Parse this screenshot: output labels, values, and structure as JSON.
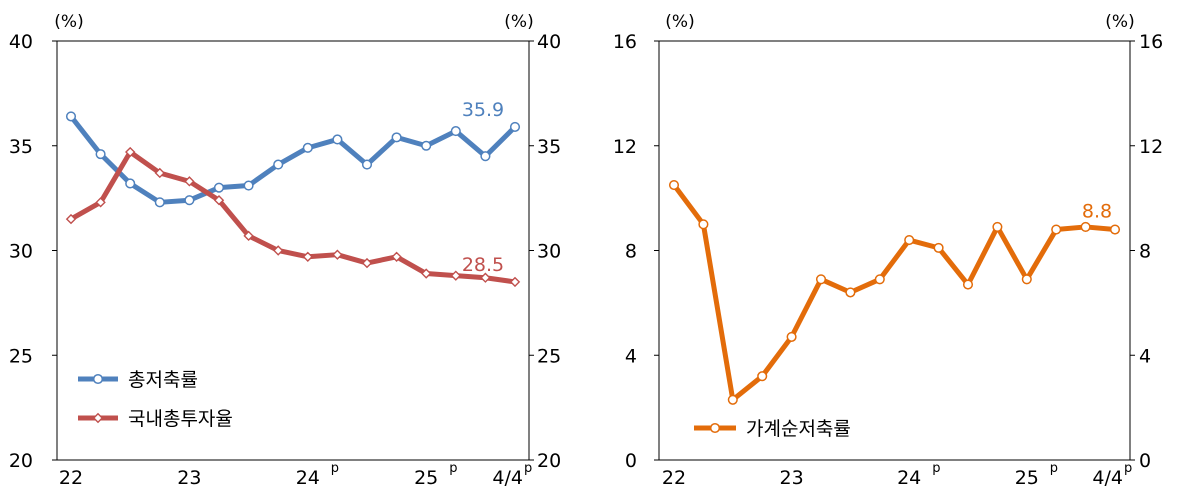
{
  "colors": {
    "blue": "#4f81bd",
    "red": "#c0504d",
    "orange": "#e36c0a",
    "axis": "#000000"
  },
  "chart_data": [
    {
      "type": "line",
      "title": "",
      "unit_left": "(%)",
      "unit_right": "(%)",
      "ylim": [
        20,
        40
      ],
      "yticks": [
        20,
        25,
        30,
        35,
        40
      ],
      "x_tick_labels": [
        {
          "index": 0,
          "label": "22"
        },
        {
          "index": 4,
          "label": "23"
        },
        {
          "index": 8,
          "label": "24",
          "sup": "p"
        },
        {
          "index": 12,
          "label": "25",
          "sup": "p"
        },
        {
          "index": 15,
          "label": "4/4",
          "sup": "p"
        }
      ],
      "legend_position": "bottom-left",
      "series": [
        {
          "name": "총저축률",
          "color": "#4f81bd",
          "marker": "circle",
          "values": [
            36.4,
            34.6,
            33.2,
            32.3,
            32.4,
            33.0,
            33.1,
            34.1,
            34.9,
            35.3,
            34.1,
            35.4,
            35.0,
            35.7,
            34.5,
            35.9
          ],
          "end_label": "35.9"
        },
        {
          "name": "국내총투자율",
          "color": "#c0504d",
          "marker": "diamond",
          "values": [
            31.5,
            32.3,
            34.7,
            33.7,
            33.3,
            32.4,
            30.7,
            30.0,
            29.7,
            29.8,
            29.4,
            29.7,
            28.9,
            28.8,
            28.7,
            28.5
          ],
          "end_label": "28.5"
        }
      ]
    },
    {
      "type": "line",
      "title": "",
      "unit_left": "(%)",
      "unit_right": "(%)",
      "ylim": [
        0,
        16
      ],
      "yticks": [
        0,
        4,
        8,
        12,
        16
      ],
      "x_tick_labels": [
        {
          "index": 0,
          "label": "22"
        },
        {
          "index": 4,
          "label": "23"
        },
        {
          "index": 8,
          "label": "24",
          "sup": "p"
        },
        {
          "index": 12,
          "label": "25",
          "sup": "p"
        },
        {
          "index": 15,
          "label": "4/4",
          "sup": "p"
        }
      ],
      "legend_position": "bottom-left",
      "series": [
        {
          "name": "가계순저축률",
          "color": "#e36c0a",
          "marker": "circle",
          "values": [
            10.5,
            9.0,
            2.3,
            3.2,
            4.7,
            6.9,
            6.4,
            6.9,
            8.4,
            8.1,
            6.7,
            8.9,
            6.9,
            8.8,
            8.9,
            8.8
          ],
          "end_label": "8.8"
        }
      ]
    }
  ]
}
